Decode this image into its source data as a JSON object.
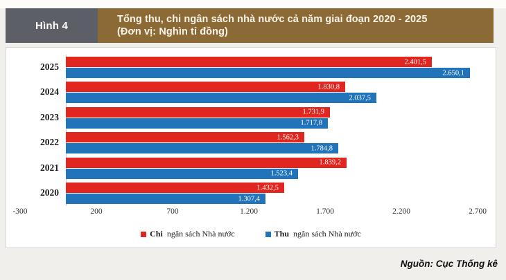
{
  "figure": {
    "label": "Hình 4",
    "title_line1": "Tổng thu, chi ngân sách nhà nước cả năm giai đoạn 2020 - 2025",
    "title_line2": "(Đơn vị: Nghìn tỉ đồng)",
    "source": "Nguồn: Cục Thống kê"
  },
  "colors": {
    "chi_red": "#e1261f",
    "thu_blue": "#2274ba",
    "header_gray": "#5c6066",
    "header_brown": "#8c6a36"
  },
  "chart_data": {
    "type": "bar",
    "orientation": "horizontal",
    "title": "Tổng thu, chi ngân sách nhà nước cả năm giai đoạn 2020 - 2025",
    "unit": "Nghìn tỉ đồng",
    "categories": [
      "2025",
      "2024",
      "2023",
      "2022",
      "2021",
      "2020"
    ],
    "series": [
      {
        "key": "chi",
        "name": "Chi ngân sách Nhà nước",
        "name_bold": "Chi",
        "name_rest": "ngân sách Nhà nước",
        "color": "#e1261f",
        "values": [
          2401.5,
          1830.8,
          1731.9,
          1562.3,
          1839.2,
          1432.5
        ],
        "labels": [
          "2.401,5",
          "1.830,8",
          "1.731,9",
          "1.562,3",
          "1.839,2",
          "1.432,5"
        ]
      },
      {
        "key": "thu",
        "name": "Thu ngân sách Nhà nước",
        "name_bold": "Thu",
        "name_rest": "ngân sách Nhà nước",
        "color": "#2274ba",
        "values": [
          2650.1,
          2037.5,
          1717.8,
          1784.8,
          1523.4,
          1307.4
        ],
        "labels": [
          "2.650,1",
          "2.037,5",
          "1.717,8",
          "1.784,8",
          "1.523,4",
          "1.307,4"
        ]
      }
    ],
    "x_ticks": [
      "-300",
      "200",
      "700",
      "1.200",
      "1.700",
      "2.200",
      "2.700"
    ],
    "x_tick_values": [
      -300,
      200,
      700,
      1200,
      1700,
      2200,
      2700
    ],
    "xlim": [
      -300,
      2700
    ],
    "grid": false,
    "legend_position": "bottom"
  }
}
